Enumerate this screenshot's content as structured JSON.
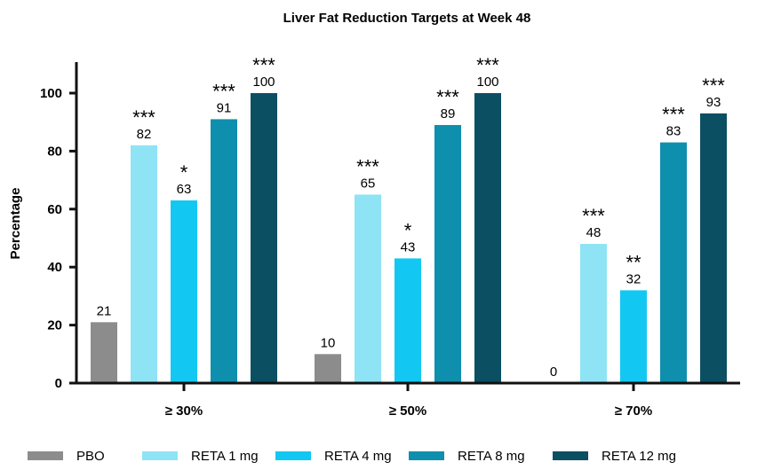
{
  "chart_data": {
    "type": "bar",
    "title": "Liver Fat Reduction Targets at Week  48",
    "xlabel": "",
    "ylabel": "Percentage",
    "ylim": [
      0,
      110
    ],
    "yticks": [
      "0",
      "20",
      "40",
      "60",
      "80",
      "100"
    ],
    "categories": [
      "≥ 30%",
      "≥ 50%",
      "≥ 70%"
    ],
    "series": [
      {
        "name": "PBO",
        "color": "#8c8c8c",
        "values": [
          21,
          10,
          0
        ],
        "labels": [
          "21",
          "10",
          "0"
        ],
        "significance": [
          "",
          "",
          ""
        ]
      },
      {
        "name": "RETA 1 mg",
        "color": "#8ee3f5",
        "values": [
          82,
          65,
          48
        ],
        "labels": [
          "82",
          "65",
          "48"
        ],
        "significance": [
          "***",
          "***",
          "***"
        ]
      },
      {
        "name": "RETA 4 mg",
        "color": "#12c8f2",
        "values": [
          63,
          43,
          32
        ],
        "labels": [
          "63",
          "43",
          "32"
        ],
        "significance": [
          "*",
          "*",
          "**"
        ]
      },
      {
        "name": "RETA 8 mg",
        "color": "#0e8fad",
        "values": [
          91,
          89,
          83
        ],
        "labels": [
          "91",
          "89",
          "83"
        ],
        "significance": [
          "***",
          "***",
          "***"
        ]
      },
      {
        "name": "RETA 12 mg",
        "color": "#0b4f63",
        "values": [
          100,
          100,
          93
        ],
        "labels": [
          "100",
          "100",
          "93"
        ],
        "significance": [
          "***",
          "***",
          "***"
        ]
      }
    ],
    "legend_position": "bottom"
  }
}
